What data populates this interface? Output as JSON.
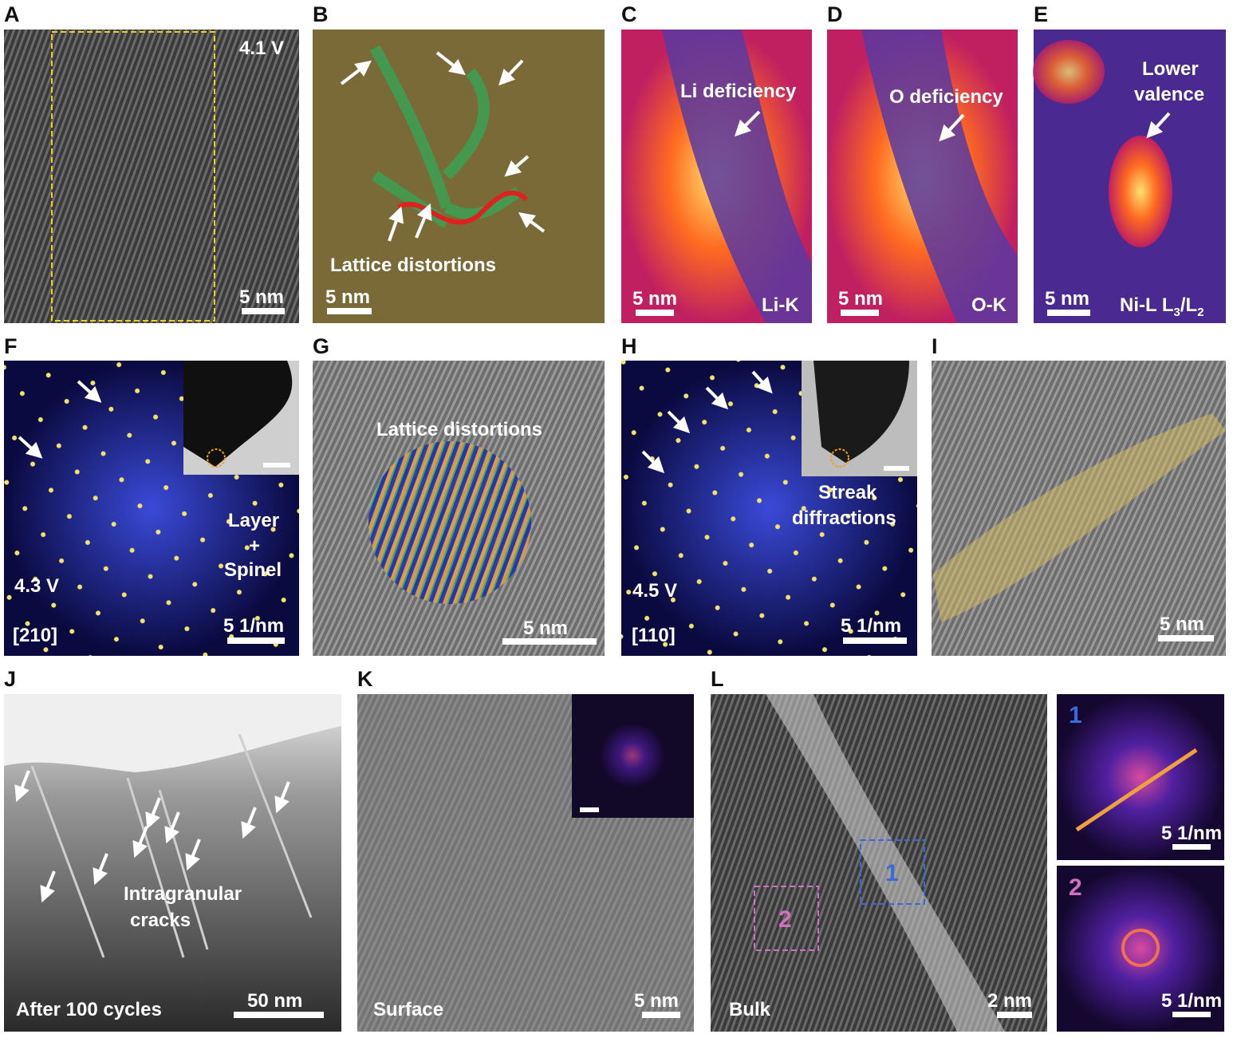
{
  "panels": [
    {
      "label": "A",
      "texts": [
        "4.1 V"
      ],
      "scale": "5 nm"
    },
    {
      "label": "B",
      "texts": [
        "Lattice distortions"
      ],
      "scale": "5 nm"
    },
    {
      "label": "C",
      "texts": [
        "Li deficiency",
        "Li-K"
      ],
      "scale": "5 nm"
    },
    {
      "label": "D",
      "texts": [
        "O deficiency",
        "O-K"
      ],
      "scale": "5 nm"
    },
    {
      "label": "E",
      "texts": [
        "Lower",
        "valence",
        "Ni-L L",
        "3",
        "/L",
        "2"
      ],
      "scale": "5 nm"
    },
    {
      "label": "F",
      "texts": [
        "Layer",
        "+",
        "Spinel",
        "4.3 V",
        "[210]"
      ],
      "scale": "5 1/nm"
    },
    {
      "label": "G",
      "texts": [
        "Lattice distortions"
      ],
      "scale": "5 nm"
    },
    {
      "label": "H",
      "texts": [
        "Streak",
        "diffractions",
        "4.5 V",
        "[110]"
      ],
      "scale": "5 1/nm"
    },
    {
      "label": "I",
      "texts": [],
      "scale": "5 nm"
    },
    {
      "label": "J",
      "texts": [
        "Intragranular",
        "cracks",
        "After 100 cycles"
      ],
      "scale": "50 nm"
    },
    {
      "label": "K",
      "texts": [
        "Surface"
      ],
      "scale": "5 nm"
    },
    {
      "label": "L",
      "texts": [
        "Bulk",
        "1",
        "2"
      ],
      "scale": "2 nm",
      "insets": [
        {
          "label": "1",
          "scale": "5 1/nm"
        },
        {
          "label": "2",
          "scale": "5 1/nm"
        }
      ]
    }
  ]
}
